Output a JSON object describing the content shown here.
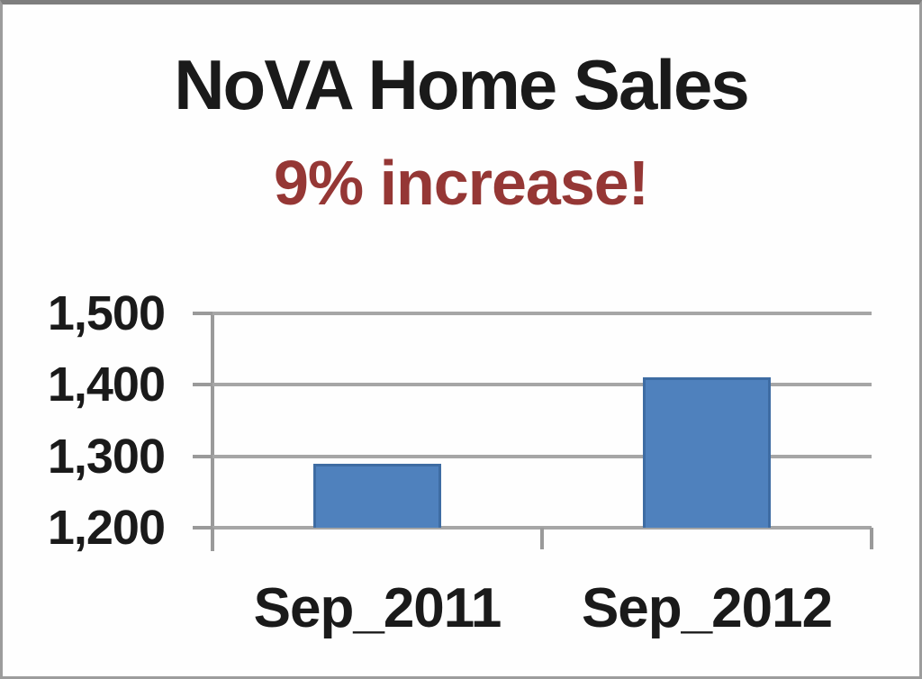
{
  "chart_data": {
    "type": "bar",
    "title": "NoVA Home Sales",
    "subtitle": "9% increase!",
    "categories": [
      "Sep_2011",
      "Sep_2012"
    ],
    "values": [
      1290,
      1410
    ],
    "ylim": [
      1200,
      1500
    ],
    "yticks": [
      1200,
      1300,
      1400,
      1500
    ],
    "ytick_labels": [
      "1,200",
      "1,300",
      "1,400",
      "1,500"
    ],
    "xlabel": "",
    "ylabel": "",
    "grid": true,
    "legend": false,
    "colors": {
      "title_text": "#1a1a1a",
      "subtitle_text": "#953735",
      "bar_fill": "#4f81bd",
      "bar_border": "#3e6ca3",
      "gridline": "#a6a6a6",
      "axis_line": "#9a9a9a",
      "tick_label_text": "#1a1a1a"
    }
  }
}
